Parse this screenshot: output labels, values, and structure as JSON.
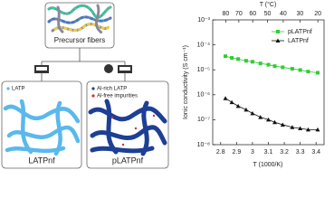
{
  "diagram": {
    "top_label": "Precursor fibers",
    "left": {
      "legend": [
        "LATP"
      ],
      "label": "LATPnf"
    },
    "right": {
      "legend": [
        "Al-rich LATP",
        "Al-free impurities"
      ],
      "label": "pLATPnf"
    }
  },
  "chart_data": {
    "type": "line",
    "x_label": "T (1000/K)",
    "y_label": "Ionic conductivity (S cm⁻¹)",
    "x2_label": "T (°C)",
    "x": [
      2.83,
      2.87,
      2.91,
      2.96,
      3.0,
      3.05,
      3.1,
      3.14,
      3.19,
      3.25,
      3.3,
      3.35,
      3.41
    ],
    "series": [
      {
        "name": "pLATPnf",
        "color": "#33cc33",
        "marker": "square",
        "values": [
          3.5e-05,
          3e-05,
          2.7e-05,
          2.3e-05,
          2.1e-05,
          1.8e-05,
          1.6e-05,
          1.4e-05,
          1.26e-05,
          1.1e-05,
          9.8e-06,
          8.5e-06,
          7.6e-06
        ]
      },
      {
        "name": "LATPnf",
        "color": "#111111",
        "marker": "triangle",
        "values": [
          7.2e-07,
          5e-07,
          3.5e-07,
          2.5e-07,
          1.8e-07,
          1.26e-07,
          1e-07,
          7.9e-08,
          6.3e-08,
          5e-08,
          4.5e-08,
          4e-08,
          4e-08
        ]
      }
    ],
    "xlim": [
      2.75,
      3.45
    ],
    "xticks": [
      2.8,
      2.9,
      3.0,
      3.1,
      3.2,
      3.3,
      3.4
    ],
    "x2ticks": [
      80,
      70,
      60,
      50,
      40,
      30,
      20
    ],
    "ylim": [
      1e-08,
      0.001
    ],
    "log_y": true,
    "yticks": [
      {
        "value": 1e-08,
        "label": "10⁻⁸"
      },
      {
        "value": 1e-07,
        "label": "10⁻⁷"
      },
      {
        "value": 1e-06,
        "label": "10⁻⁶"
      },
      {
        "value": 1e-05,
        "label": "10⁻⁵"
      },
      {
        "value": 0.0001,
        "label": "10⁻⁴"
      },
      {
        "value": 0.001,
        "label": "10⁻³"
      }
    ],
    "legend": "upper right"
  }
}
